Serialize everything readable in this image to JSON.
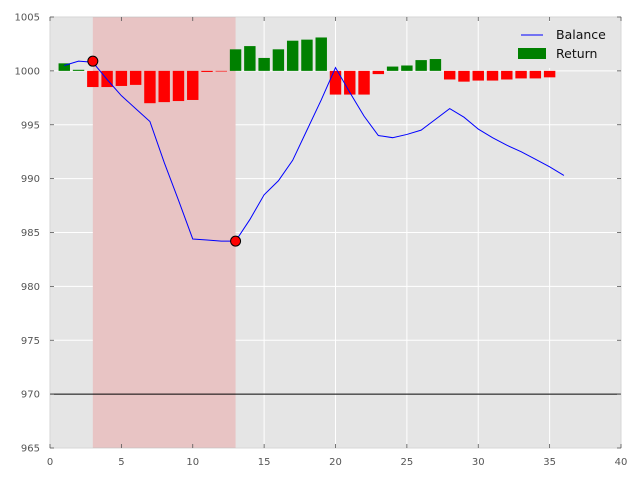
{
  "chart_data": {
    "type": "bar+line",
    "xlim": [
      0,
      40
    ],
    "ylim": [
      965,
      1005
    ],
    "xticks": [
      0,
      5,
      10,
      15,
      20,
      25,
      30,
      35,
      40
    ],
    "yticks": [
      965,
      970,
      975,
      980,
      985,
      990,
      995,
      1000,
      1005
    ],
    "grid": true,
    "legend_position": "top-right",
    "legend": [
      {
        "label": "Balance",
        "kind": "line",
        "color": "#0000ff"
      },
      {
        "label": "Return",
        "kind": "patch",
        "color": "#008000"
      }
    ],
    "colors": {
      "plot_background": "#e5e5e5",
      "grid": "#ffffff",
      "balance_line": "#0000ff",
      "positive_bar": "#008000",
      "negative_bar": "#ff0000",
      "drawdown_span": "#e8c4c4",
      "reference_line": "#000000",
      "markers": "#ff0000"
    },
    "bars": {
      "name": "Return",
      "baseline": 1000,
      "width": 0.8,
      "x": [
        1,
        2,
        3,
        4,
        5,
        6,
        7,
        8,
        9,
        10,
        11,
        12,
        13,
        14,
        15,
        16,
        17,
        18,
        19,
        20,
        21,
        22,
        23,
        24,
        25,
        26,
        27,
        28,
        29,
        30,
        31,
        32,
        33,
        34,
        35
      ],
      "values": [
        0.7,
        0.1,
        -1.5,
        -1.5,
        -1.4,
        -1.3,
        -3.0,
        -2.9,
        -2.8,
        -2.7,
        -0.1,
        -0.05,
        2.0,
        2.3,
        1.2,
        2.0,
        2.8,
        2.9,
        3.1,
        -2.2,
        -2.2,
        -2.2,
        -0.3,
        0.4,
        0.5,
        1.0,
        1.1,
        -0.8,
        -1.0,
        -0.9,
        -0.9,
        -0.8,
        -0.7,
        -0.7,
        -0.6
      ]
    },
    "balance": {
      "name": "Balance",
      "x": [
        1,
        2,
        3,
        4,
        5,
        6,
        7,
        8,
        9,
        10,
        11,
        12,
        13,
        14,
        15,
        16,
        17,
        18,
        19,
        20,
        21,
        22,
        23,
        24,
        25,
        26,
        27,
        28,
        29,
        30,
        31,
        32,
        33,
        34,
        35,
        36
      ],
      "y": [
        1000.5,
        1000.9,
        1000.8,
        999.2,
        997.7,
        996.5,
        995.3,
        991.5,
        988.0,
        984.4,
        984.3,
        984.2,
        984.2,
        986.2,
        988.5,
        989.8,
        991.7,
        994.5,
        997.3,
        1000.3,
        998.0,
        995.8,
        994.0,
        993.8,
        994.1,
        994.5,
        995.5,
        996.5,
        995.7,
        994.6,
        993.8,
        993.1,
        992.5,
        991.8,
        991.1,
        990.3
      ]
    },
    "markers": [
      {
        "x": 3,
        "y": 1000.9
      },
      {
        "x": 13,
        "y": 984.2
      }
    ],
    "drawdown_span": {
      "x_start": 3,
      "x_end": 13
    },
    "reference_line": {
      "y": 970
    }
  }
}
